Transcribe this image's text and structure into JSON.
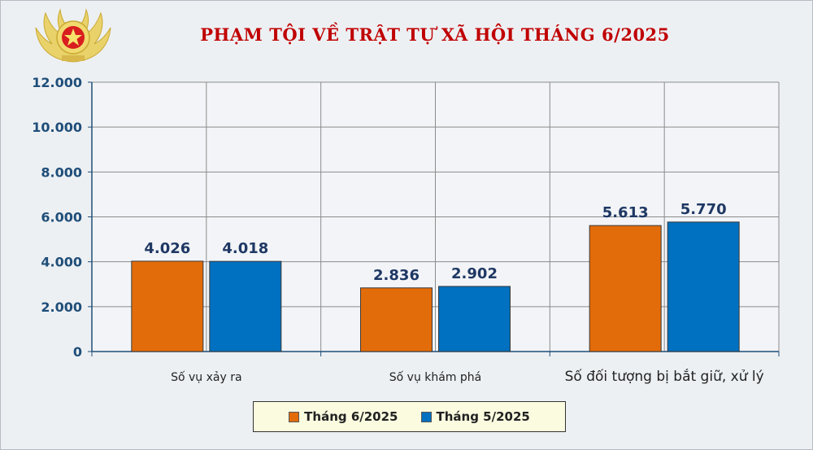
{
  "header": {
    "title": "PHẠM TỘI VỀ TRẬT TỰ XÃ HỘI THÁNG 6/2025",
    "emblem_icon": "police-star-emblem-icon"
  },
  "chart_data": {
    "type": "bar",
    "title": "PHẠM TỘI VỀ TRẬT TỰ XÃ HỘI THÁNG 6/2025",
    "categories": [
      "Số vụ xảy ra",
      "Số vụ khám phá",
      "Số đối tượng bị bắt giữ, xử lý"
    ],
    "series": [
      {
        "name": "Tháng 6/2025",
        "values": [
          4026,
          2836,
          5613
        ],
        "labels": [
          "4.026",
          "2.836",
          "5.613"
        ],
        "color": "#e36c0a"
      },
      {
        "name": "Tháng 5/2025",
        "values": [
          4018,
          2902,
          5770
        ],
        "labels": [
          "4.018",
          "2.902",
          "5.770"
        ],
        "color": "#0070c0"
      }
    ],
    "ylim": [
      0,
      12000
    ],
    "yticks": [
      0,
      2000,
      4000,
      6000,
      8000,
      10000,
      12000
    ],
    "ytick_labels": [
      "0",
      "2.000",
      "4.000",
      "6.000",
      "8.000",
      "10.000",
      "12.000"
    ],
    "grid": true,
    "legend_position": "bottom",
    "axis_color": "#1f4e79"
  }
}
